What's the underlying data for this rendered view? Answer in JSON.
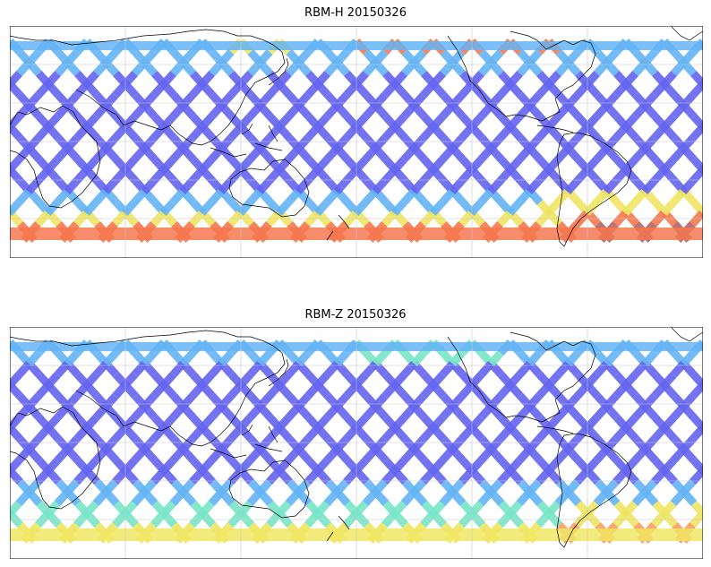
{
  "panels": [
    {
      "title": "RBM-H 20150326",
      "colors": {
        "cold": "#6464f0",
        "cool": "#64b4f5",
        "mid": "#78e6c8",
        "warm": "#f0e664",
        "hot": "#f57850",
        "max": "#b46464"
      }
    },
    {
      "title": "RBM-Z 20150326",
      "colors": {
        "cold": "#6464f0",
        "cool": "#64b4f5",
        "mid": "#78e6c8",
        "warm": "#f0e664",
        "hot": "#f5a064",
        "max": "#b46464"
      }
    }
  ],
  "map": {
    "projection": "cylindrical",
    "gridlines": true,
    "coastlines": true,
    "colormap": "jet (semi-transparent)",
    "tick_labels": false
  }
}
